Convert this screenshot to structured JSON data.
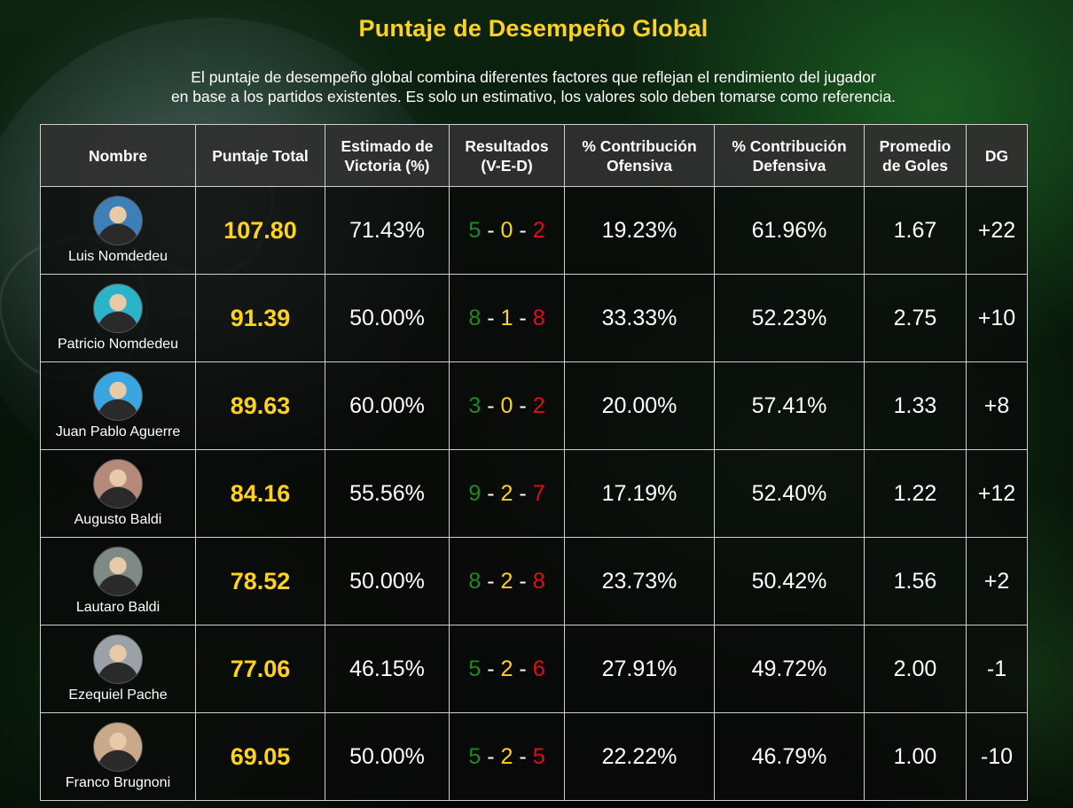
{
  "page": {
    "title": "Puntaje de Desempeño Global",
    "description_line1": "El puntaje de desempeño global combina diferentes factores que reflejan el rendimiento del jugador",
    "description_line2": "en base a los partidos existentes. Es solo un estimativo, los valores solo deben tomarse como referencia."
  },
  "table": {
    "headers": {
      "nombre": "Nombre",
      "puntaje_total": "Puntaje Total",
      "estimado_victoria_1": "Estimado de",
      "estimado_victoria_2": "Victoria (%)",
      "resultados_1": "Resultados",
      "resultados_2": "(V-E-D)",
      "contrib_ofensiva_1": "% Contribución",
      "contrib_ofensiva_2": "Ofensiva",
      "contrib_defensiva_1": "% Contribución",
      "contrib_defensiva_2": "Defensiva",
      "promedio_goles_1": "Promedio",
      "promedio_goles_2": "de Goles",
      "dg": "DG"
    },
    "separator": "-",
    "rows": [
      {
        "name": "Luis Nomdedeu",
        "avatar_color": "#3f7fb8",
        "score": "107.80",
        "win_estimate": "71.43%",
        "w": "5",
        "d": "0",
        "l": "2",
        "off": "19.23%",
        "def": "61.96%",
        "goals_avg": "1.67",
        "dg": "+22"
      },
      {
        "name": "Patricio Nomdedeu",
        "avatar_color": "#2bb3c9",
        "score": "91.39",
        "win_estimate": "50.00%",
        "w": "8",
        "d": "1",
        "l": "8",
        "off": "33.33%",
        "def": "52.23%",
        "goals_avg": "2.75",
        "dg": "+10"
      },
      {
        "name": "Juan Pablo Aguerre",
        "avatar_color": "#3aa6e0",
        "score": "89.63",
        "win_estimate": "60.00%",
        "w": "3",
        "d": "0",
        "l": "2",
        "off": "20.00%",
        "def": "57.41%",
        "goals_avg": "1.33",
        "dg": "+8"
      },
      {
        "name": "Augusto Baldi",
        "avatar_color": "#b58a7a",
        "score": "84.16",
        "win_estimate": "55.56%",
        "w": "9",
        "d": "2",
        "l": "7",
        "off": "17.19%",
        "def": "52.40%",
        "goals_avg": "1.22",
        "dg": "+12"
      },
      {
        "name": "Lautaro Baldi",
        "avatar_color": "#7f8a86",
        "score": "78.52",
        "win_estimate": "50.00%",
        "w": "8",
        "d": "2",
        "l": "8",
        "off": "23.73%",
        "def": "50.42%",
        "goals_avg": "1.56",
        "dg": "+2"
      },
      {
        "name": "Ezequiel Pache",
        "avatar_color": "#9aa2a8",
        "score": "77.06",
        "win_estimate": "46.15%",
        "w": "5",
        "d": "2",
        "l": "6",
        "off": "27.91%",
        "def": "49.72%",
        "goals_avg": "2.00",
        "dg": "-1"
      },
      {
        "name": "Franco Brugnoni",
        "avatar_color": "#c9a98a",
        "score": "69.05",
        "win_estimate": "50.00%",
        "w": "5",
        "d": "2",
        "l": "5",
        "off": "22.22%",
        "def": "46.79%",
        "goals_avg": "1.00",
        "dg": "-10"
      }
    ]
  }
}
